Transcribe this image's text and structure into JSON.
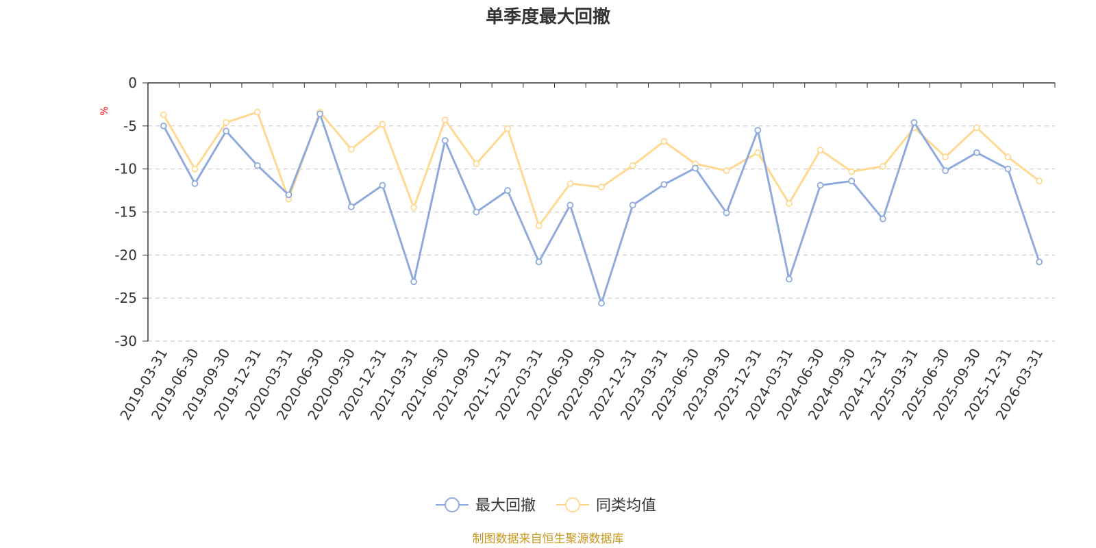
{
  "chart_data": {
    "type": "line",
    "title": "单季度最大回撤",
    "ylabel": "%",
    "ylim": [
      -30,
      0
    ],
    "yticks": [
      0,
      -5,
      -10,
      -15,
      -20,
      -25,
      -30
    ],
    "grid": true,
    "legend_position": "bottom-center",
    "categories": [
      "2019-03-31",
      "2019-06-30",
      "2019-09-30",
      "2019-12-31",
      "2020-03-31",
      "2020-06-30",
      "2020-09-30",
      "2020-12-31",
      "2021-03-31",
      "2021-06-30",
      "2021-09-30",
      "2021-12-31",
      "2022-03-31",
      "2022-06-30",
      "2022-09-30",
      "2022-12-31",
      "2023-03-31",
      "2023-06-30",
      "2023-09-30",
      "2023-12-31",
      "2024-03-31",
      "2024-06-30",
      "2024-09-30",
      "2024-12-31",
      "2025-03-31",
      "2025-06-30",
      "2025-09-30",
      "2025-12-31",
      "2026-03-31"
    ],
    "series": [
      {
        "name": "最大回撤",
        "color": "#8faadc",
        "values": [
          -5.0,
          -11.7,
          -5.6,
          -9.6,
          -13.0,
          -3.6,
          -14.4,
          -11.9,
          -23.1,
          -6.7,
          -15.0,
          -12.5,
          -20.8,
          -14.2,
          -25.6,
          -14.2,
          -11.8,
          -9.9,
          -15.1,
          -5.5,
          -22.8,
          -11.9,
          -11.4,
          -15.8,
          -4.6,
          -10.2,
          -8.1,
          -10.0,
          -20.8
        ]
      },
      {
        "name": "同类均值",
        "color": "#ffd991",
        "values": [
          -3.7,
          -10.0,
          -4.6,
          -3.4,
          -13.5,
          -3.4,
          -7.7,
          -4.8,
          -14.5,
          -4.3,
          -9.4,
          -5.3,
          -16.6,
          -11.7,
          -12.1,
          -9.6,
          -6.8,
          -9.4,
          -10.2,
          -8.1,
          -14.0,
          -7.8,
          -10.3,
          -9.7,
          -5.2,
          -8.6,
          -5.2,
          -8.6,
          -11.4
        ]
      }
    ],
    "unit_color": "#ff0000"
  },
  "footer": {
    "source": "制图数据来自恒生聚源数据库",
    "source_color": "#c9961c"
  }
}
